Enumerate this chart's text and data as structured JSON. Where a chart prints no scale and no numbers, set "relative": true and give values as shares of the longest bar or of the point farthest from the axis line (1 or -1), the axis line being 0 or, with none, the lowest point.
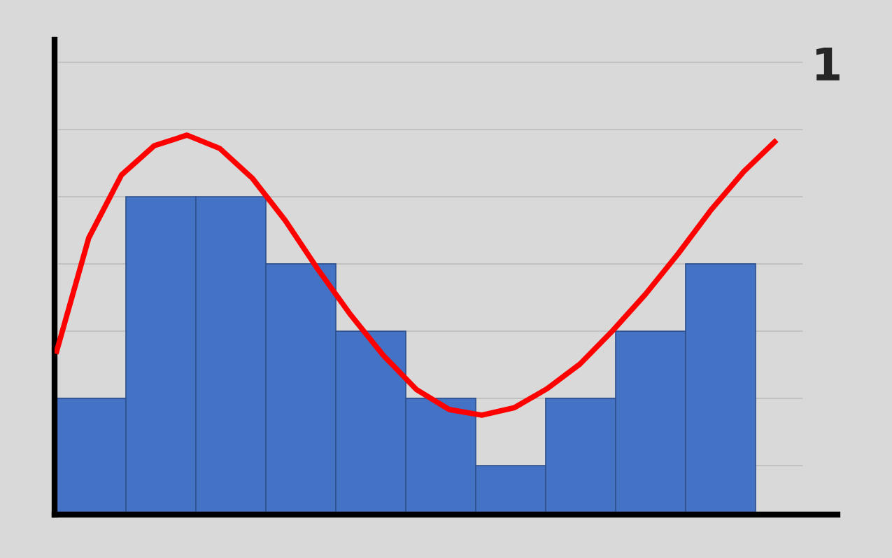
{
  "chart_data": [
    {
      "type": "bar",
      "relative": true,
      "grid": "y",
      "color": "#4472c4",
      "categories": [
        null,
        null,
        null,
        null,
        null,
        null,
        null,
        null,
        null,
        null
      ],
      "values": [
        0.366,
        1,
        1,
        0.789,
        0.577,
        0.366,
        0.154,
        0.366,
        0.577,
        0.789
      ],
      "annotations": [
        "1"
      ]
    },
    {
      "type": "line",
      "relative": true,
      "color": "#ff0000",
      "line_style": "solid",
      "categories": [
        null,
        null,
        null,
        null,
        null,
        null,
        null,
        null,
        null,
        null,
        null,
        null,
        null,
        null,
        null,
        null,
        null,
        null,
        null,
        null,
        null,
        null,
        null
      ],
      "values": [
        0.424,
        0.729,
        0.895,
        0.972,
        1.0,
        0.965,
        0.886,
        0.775,
        0.646,
        0.526,
        0.419,
        0.33,
        0.277,
        0.262,
        0.282,
        0.332,
        0.397,
        0.485,
        0.581,
        0.688,
        0.803,
        0.904,
        0.987
      ]
    }
  ]
}
